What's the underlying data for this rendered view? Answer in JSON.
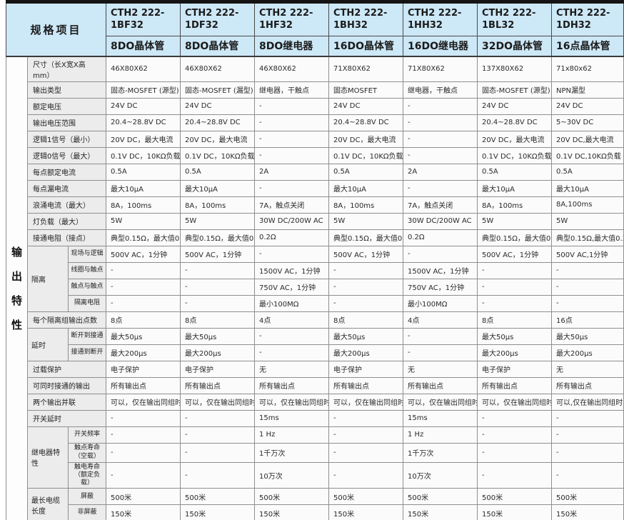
{
  "colors": {
    "header_bg": "#cde8f7",
    "label_bg": "#ececec",
    "top_bar": "#141414"
  },
  "table": {
    "corner_label": "规格项目",
    "side_label": "输出特性",
    "columns": [
      {
        "model": "CTH2 222-1BF32",
        "type": "8DO晶体管"
      },
      {
        "model": "CTH2 222-1DF32",
        "type": "8DO晶体管"
      },
      {
        "model": "CTH2 222-1HF32",
        "type": "8DO继电器"
      },
      {
        "model": "CTH2 222-1BH32",
        "type": "16DO晶体管"
      },
      {
        "model": "CTH2 222-1HH32",
        "type": "16DO继电器"
      },
      {
        "model": "CTH2 222-1BL32",
        "type": "32DO晶体管"
      },
      {
        "model": "CTH2 222-1DH32",
        "type": "16点晶体管"
      }
    ],
    "rows": [
      {
        "label": "尺寸（长X宽X高mm）",
        "cells": [
          "46X80X62",
          "46X80X62",
          "46X80X62",
          "71X80X62",
          "71X80X62",
          "137X80X62",
          "71x80x62"
        ]
      },
      {
        "label": "输出类型",
        "cells": [
          "固态-MOSFET (源型)",
          "固态-MOSFET (漏型)",
          "继电器，干触点",
          "固态MOSFET",
          "继电器，干触点",
          "固态-MOSFET (源型)",
          "NPN漏型"
        ]
      },
      {
        "label": "额定电压",
        "cells": [
          "24V DC",
          "24V DC",
          "-",
          "24V DC",
          "-",
          "24V DC",
          "24V DC"
        ]
      },
      {
        "label": "输出电压范围",
        "cells": [
          "20.4~28.8V DC",
          "20.4~28.8V DC",
          "-",
          "20.4~28.8V DC",
          "-",
          "20.4~28.8V DC",
          "5~30V DC"
        ]
      },
      {
        "label": "逻辑1信号（最小）",
        "cells": [
          "20V DC，最大电流",
          "20V DC，最大电流",
          "-",
          "20V DC，最大电流",
          "-",
          "20V DC，最大电流",
          "20V DC,最大电流"
        ]
      },
      {
        "label": "逻辑0信号（最大）",
        "cells": [
          "0.1V DC，10KΩ负载",
          "0.1V DC，10KΩ负载",
          "-",
          "0.1V DC，10KΩ负载",
          "-",
          "0.1V DC，10KΩ负载",
          "0.1V DC,10KΩ负载"
        ]
      },
      {
        "label": "每点额定电流",
        "cells": [
          "0.5A",
          "0.5A",
          "2A",
          "0.5A",
          "2A",
          "0.5A",
          "0.5A"
        ]
      },
      {
        "label": "每点漏电流",
        "cells": [
          "最大10μA",
          "最大10μA",
          "-",
          "最大10μA",
          "-",
          "最大10μA",
          "最大10μA"
        ]
      },
      {
        "label": "浪涌电流（最大）",
        "cells": [
          "8A，100ms",
          "8A，100ms",
          "7A，触点关闭",
          "8A，100ms",
          "7A，触点关闭",
          "8A，100ms",
          "8A,100ms"
        ]
      },
      {
        "label": "灯负载（最大）",
        "cells": [
          "5W",
          "5W",
          "30W DC/200W AC",
          "5W",
          "30W DC/200W AC",
          "5W",
          "5W"
        ]
      },
      {
        "label": "接通电阻（接点）",
        "cells": [
          "典型0.15Ω，最大值0.32Ω",
          "典型0.15Ω，最大值0.32Ω",
          "0.2Ω",
          "典型0.15Ω，最大值0.32Ω",
          "0.2Ω",
          "典型0.15Ω，最大值0.32Ω",
          "典型0.15Ω,最大值0.32"
        ]
      },
      {
        "group": "隔离",
        "group_span": 4,
        "label": "现场与逻辑",
        "cells": [
          "500V AC，1分钟",
          "500V AC，1分钟",
          "-",
          "500V AC，1分钟",
          "-",
          "500V AC，1分钟",
          "500V AC,1分钟"
        ]
      },
      {
        "sub": true,
        "label": "线圈与触点",
        "cells": [
          "-",
          "-",
          "1500V AC，1分钟",
          "-",
          "1500V AC，1分钟",
          "-",
          "-"
        ]
      },
      {
        "sub": true,
        "label": "触点与触点",
        "cells": [
          "-",
          "-",
          "750V AC，1分钟",
          "-",
          "750V AC，1分钟",
          "-",
          "-"
        ]
      },
      {
        "sub": true,
        "label": "隔离电阻",
        "cells": [
          "-",
          "-",
          "最小100MΩ",
          "-",
          "最小100MΩ",
          "-",
          "-"
        ]
      },
      {
        "label": "每个隔离组输出点数",
        "cells": [
          "8点",
          "8点",
          "4点",
          "8点",
          "4点",
          "8点",
          "16点"
        ]
      },
      {
        "group": "延时",
        "group_span": 2,
        "label": "断开到接通",
        "cells": [
          "最大50μs",
          "最大50μs",
          "-",
          "最大50μs",
          "-",
          "最大50μs",
          "最大50μs"
        ]
      },
      {
        "sub": true,
        "label": "接通到断开",
        "cells": [
          "最大200μs",
          "最大200μs",
          "-",
          "最大200μs",
          "-",
          "最大200μs",
          "最大200μs"
        ]
      },
      {
        "label": "过载保护",
        "cells": [
          "电子保护",
          "电子保护",
          "无",
          "电子保护",
          "无",
          "电子保护",
          "无"
        ]
      },
      {
        "label": "可同时接通的输出",
        "cells": [
          "所有输出点",
          "所有输出点",
          "所有输出点",
          "所有输出点",
          "所有输出点",
          "所有输出点",
          "所有输出点"
        ]
      },
      {
        "label": "两个输出并联",
        "cells": [
          "可以，仅在输出同组时",
          "可以，仅在输出同组时",
          "可以，仅在输出同组时",
          "可以，仅在输出同组时",
          "可以，仅在输出同组时",
          "可以，仅在输出同组时",
          "可以,仅在输出同组时"
        ]
      },
      {
        "label": "开关延时",
        "cells": [
          "-",
          "-",
          "15ms",
          "-",
          "15ms",
          "-",
          "-"
        ]
      },
      {
        "group": "继电器特性",
        "group_span": 3,
        "label": "开关频率",
        "cells": [
          "-",
          "-",
          "1 Hz",
          "-",
          "1 Hz",
          "-",
          "-"
        ]
      },
      {
        "sub": true,
        "tall": true,
        "label": "触点寿命（空载）",
        "cells": [
          "-",
          "-",
          "1千万次",
          "-",
          "1千万次",
          "-",
          "-"
        ]
      },
      {
        "sub": true,
        "tall": true,
        "label": "触电寿命（额定负载）",
        "cells": [
          "-",
          "-",
          "10万次",
          "-",
          "10万次",
          "-",
          "-"
        ]
      },
      {
        "group": "最长电缆长度",
        "group_span": 2,
        "label": "屏蔽",
        "cells": [
          "500米",
          "500米",
          "500米",
          "500米",
          "500米",
          "500米",
          "500米"
        ]
      },
      {
        "sub": true,
        "label": "非屏蔽",
        "cells": [
          "150米",
          "150米",
          "150米",
          "150米",
          "150米",
          "150米",
          "150米"
        ]
      }
    ]
  }
}
